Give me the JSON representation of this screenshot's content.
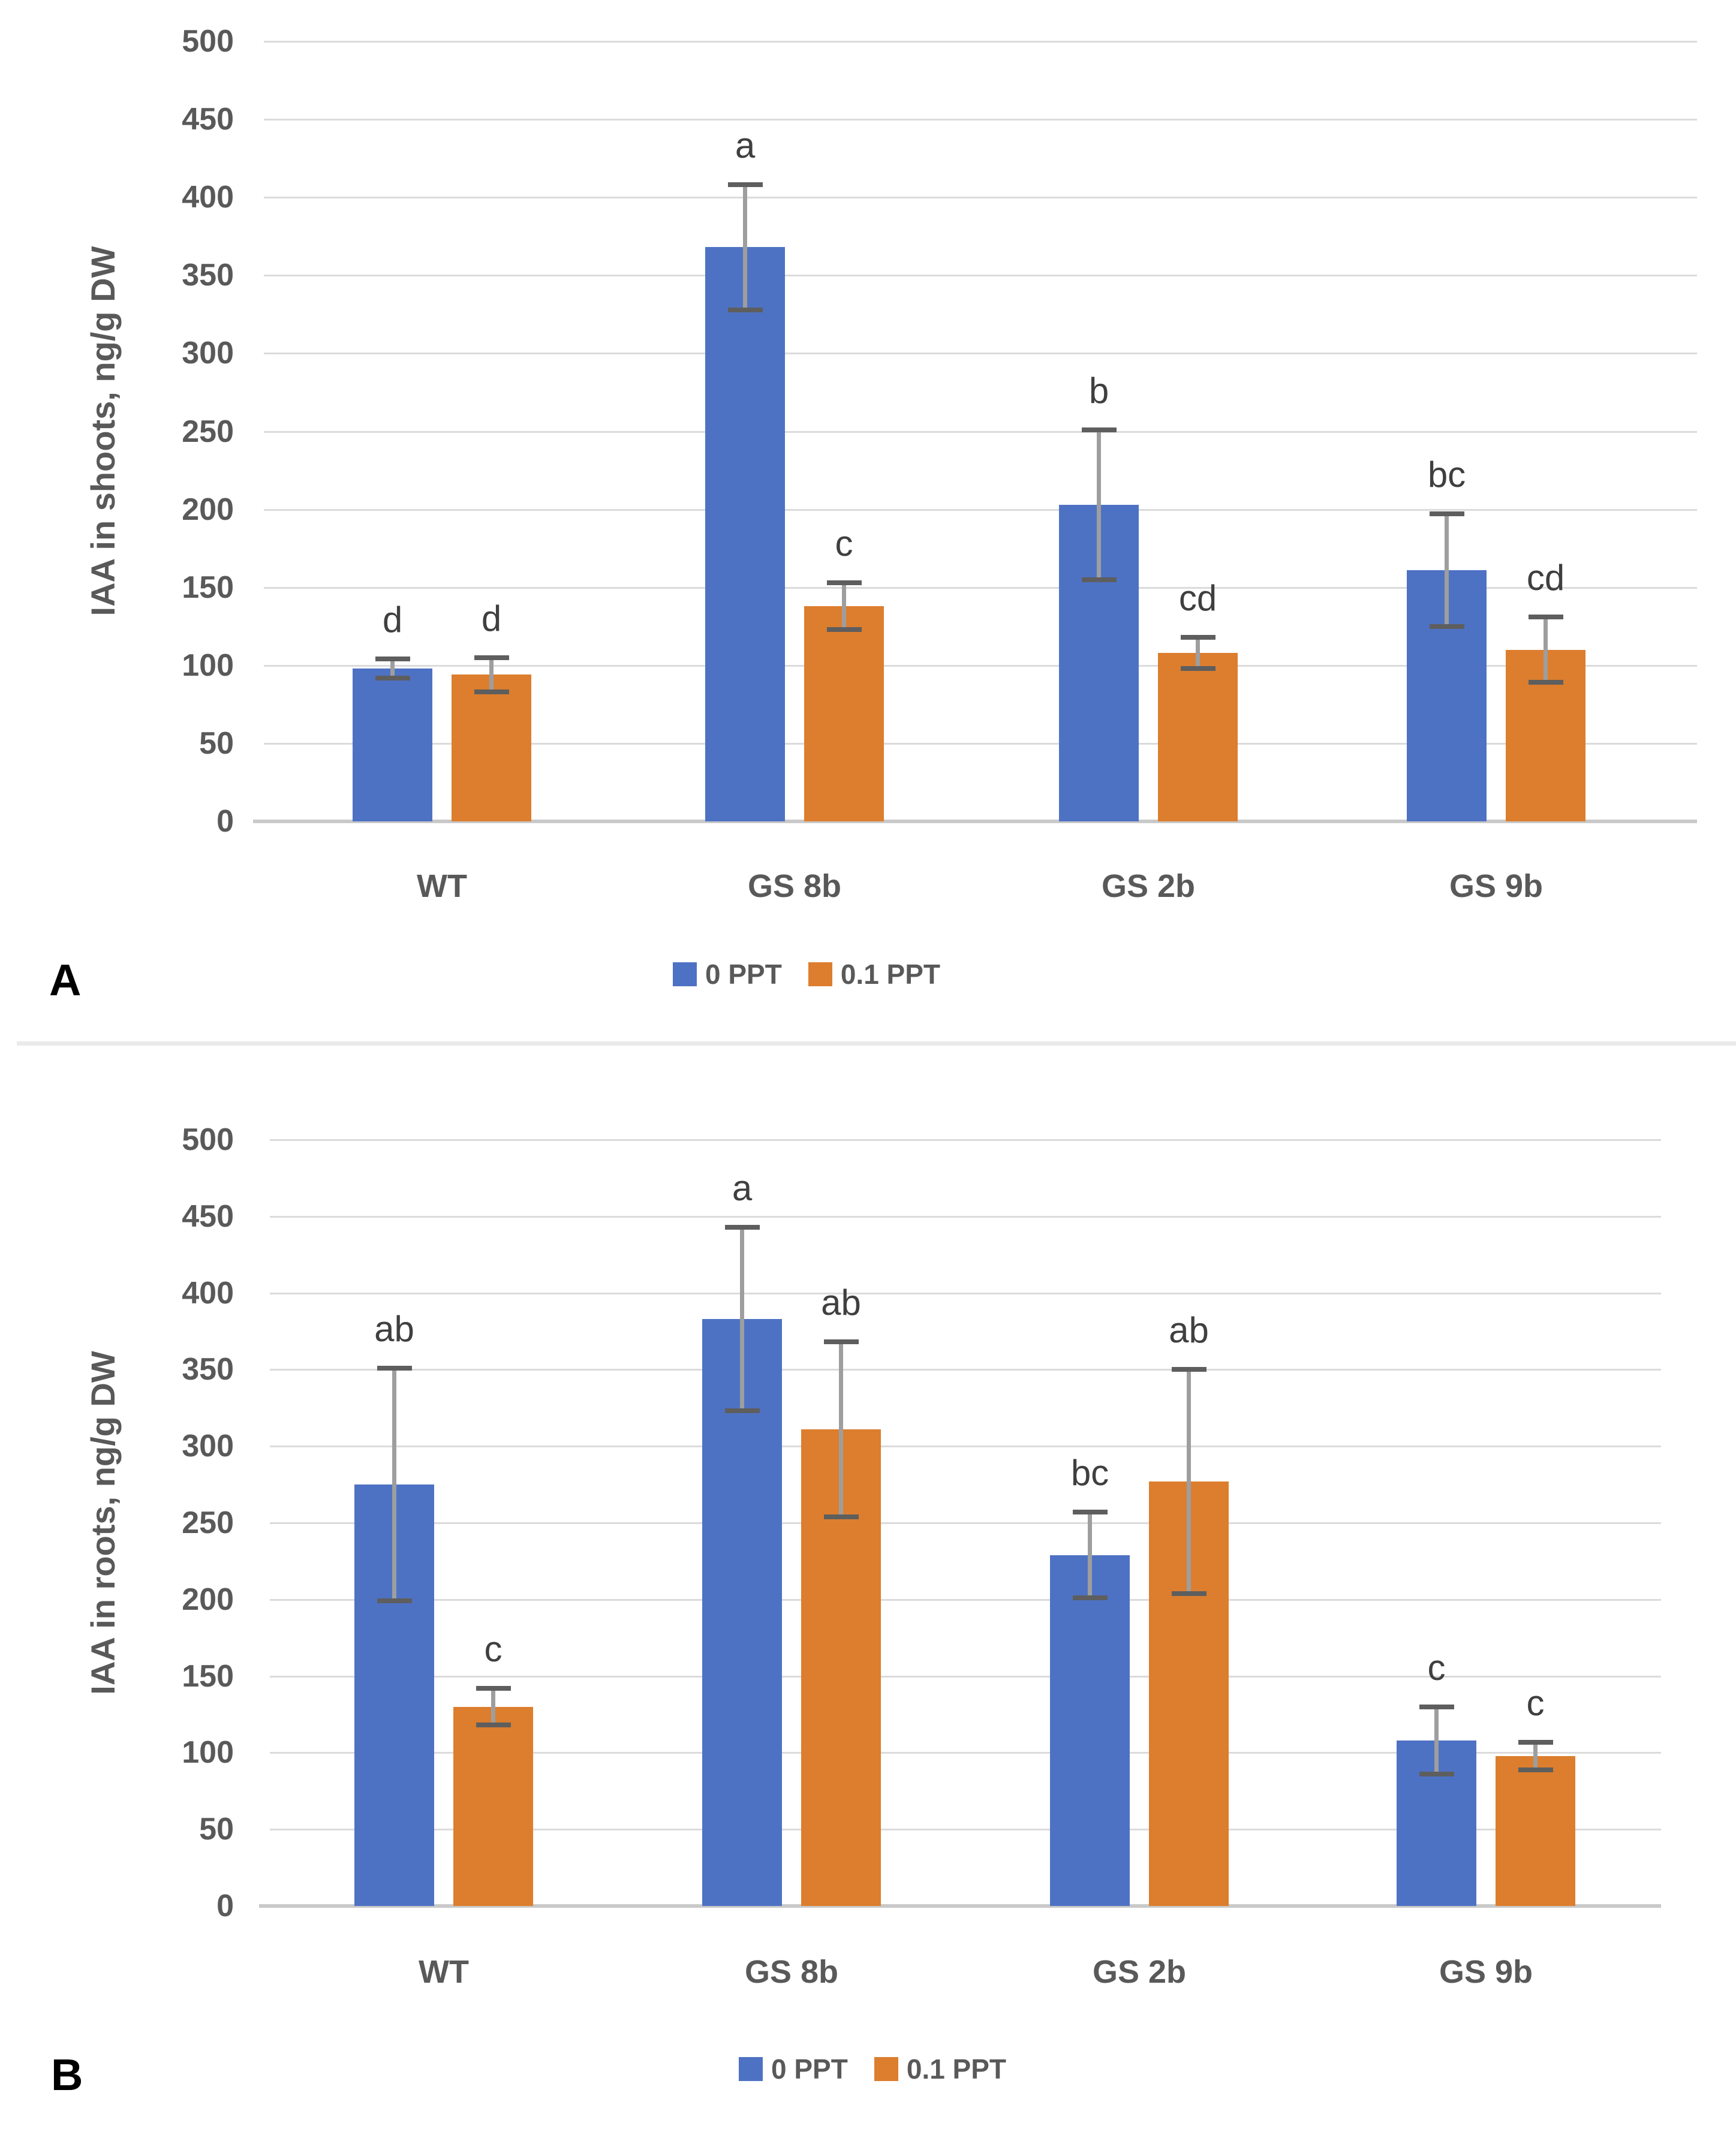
{
  "chart_data": [
    {
      "type": "bar",
      "panel_label": "A",
      "title": "",
      "xlabel": "",
      "ylabel": "IAA in shoots, ng/g DW",
      "ylim": [
        0,
        500
      ],
      "yticks": [
        0,
        50,
        100,
        150,
        200,
        250,
        300,
        350,
        400,
        450,
        500
      ],
      "grid": true,
      "legend_position": "bottom",
      "categories": [
        "WT",
        "GS 8b",
        "GS 2b",
        "GS 9b"
      ],
      "series": [
        {
          "name": "0 PPT",
          "color": "#4E72C3",
          "values": [
            98,
            368,
            203,
            161
          ],
          "errors": [
            6,
            40,
            48,
            36
          ],
          "sig_letters": [
            "d",
            "a",
            "b",
            "bc"
          ]
        },
        {
          "name": "0.1 PPT",
          "color": "#DC7E2E",
          "values": [
            94,
            138,
            108,
            110
          ],
          "errors": [
            11,
            15,
            10,
            21
          ],
          "sig_letters": [
            "d",
            "c",
            "cd",
            "cd"
          ]
        }
      ]
    },
    {
      "type": "bar",
      "panel_label": "B",
      "title": "",
      "xlabel": "",
      "ylabel": "IAA in roots, ng/g DW",
      "ylim": [
        0,
        500
      ],
      "yticks": [
        0,
        50,
        100,
        150,
        200,
        250,
        300,
        350,
        400,
        450,
        500
      ],
      "grid": true,
      "legend_position": "bottom",
      "categories": [
        "WT",
        "GS 8b",
        "GS 2b",
        "GS 9b"
      ],
      "series": [
        {
          "name": "0 PPT",
          "color": "#4E72C3",
          "values": [
            275,
            383,
            229,
            108
          ],
          "errors": [
            76,
            60,
            28,
            22
          ],
          "sig_letters": [
            "ab",
            "a",
            "bc",
            "c"
          ]
        },
        {
          "name": "0.1 PPT",
          "color": "#DC7E2E",
          "values": [
            130,
            311,
            277,
            98
          ],
          "errors": [
            12,
            57,
            73,
            9
          ],
          "sig_letters": [
            "c",
            "ab",
            "ab",
            "c"
          ]
        }
      ]
    }
  ],
  "legend": {
    "items": [
      "0 PPT",
      "0.1 PPT"
    ],
    "colors": [
      "#4E72C3",
      "#DC7E2E"
    ]
  },
  "status_colors": {
    "gridline": "#DBDBDB",
    "axis_line": "#C9C9C9",
    "axis_text": "#595959",
    "letter_text": "#3F3F3F"
  }
}
